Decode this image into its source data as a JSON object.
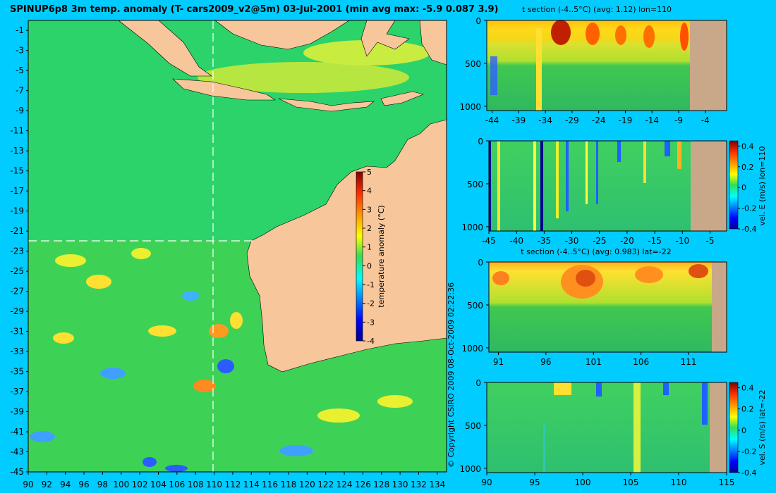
{
  "main_title": "SPINUP6p8 3m temp. anomaly (T- cars2009_v2@5m) 03-Jul-2001 (min avg max: -5.9 0.087 3.9)",
  "copyright": "© Copyright CSIRO 2009   08-Oct-2009 02:22:36",
  "colors": {
    "background": "#00ccff",
    "ocean": "#2bd36a",
    "land": "#f7c69a",
    "section_land": "#c8a888"
  },
  "chart_data": [
    {
      "type": "heatmap",
      "title": "",
      "xlabel": "",
      "ylabel": "",
      "x_ticks": [
        "90",
        "92",
        "94",
        "96",
        "98",
        "100",
        "102",
        "104",
        "106",
        "108",
        "110",
        "112",
        "114",
        "116",
        "118",
        "120",
        "122",
        "124",
        "126",
        "128",
        "130",
        "132",
        "134"
      ],
      "y_ticks": [
        "-1",
        "-3",
        "-5",
        "-7",
        "-9",
        "-11",
        "-13",
        "-15",
        "-17",
        "-19",
        "-21",
        "-23",
        "-25",
        "-27",
        "-29",
        "-31",
        "-33",
        "-35",
        "-37",
        "-39",
        "-41",
        "-43",
        "-45"
      ],
      "xlim": [
        90,
        135
      ],
      "ylim": [
        -45,
        0
      ],
      "crosshair": {
        "lon": 110,
        "lat": -22
      },
      "colorbar": {
        "label": "temperature anomaly (°C)",
        "ticks": [
          "5",
          "4",
          "3",
          "2",
          "1",
          "0",
          "-1",
          "-2",
          "-3",
          "-4"
        ],
        "range": [
          -4,
          5
        ]
      }
    },
    {
      "type": "heatmap",
      "title": "t section (-4..5°C) (avg: 1.12) lon=110",
      "x_ticks": [
        "-44",
        "-39",
        "-34",
        "-29",
        "-24",
        "-19",
        "-14",
        "-9",
        "-4"
      ],
      "y_ticks": [
        "0",
        "500",
        "1000"
      ],
      "xlim": [
        -45,
        0
      ],
      "ylim": [
        1050,
        0
      ]
    },
    {
      "type": "heatmap",
      "title": "",
      "x_ticks": [
        "-45",
        "-40",
        "-35",
        "-30",
        "-25",
        "-20",
        "-15",
        "-10",
        "-5"
      ],
      "y_ticks": [
        "0",
        "500",
        "1000"
      ],
      "xlim": [
        -45,
        -2
      ],
      "ylim": [
        1050,
        0
      ],
      "colorbar": {
        "label": "vel. E (m/s) lon=110",
        "ticks": [
          "0.4",
          "0.2",
          "0",
          "-0.2",
          "-0.4"
        ],
        "range": [
          -0.4,
          0.45
        ]
      }
    },
    {
      "type": "heatmap",
      "title": "t section (-4..5°C) (avg: 0.983) lat=-22",
      "x_ticks": [
        "91",
        "96",
        "101",
        "106",
        "111"
      ],
      "y_ticks": [
        "0",
        "500",
        "1000"
      ],
      "xlim": [
        90,
        115
      ],
      "ylim": [
        1050,
        0
      ]
    },
    {
      "type": "heatmap",
      "title": "",
      "x_ticks": [
        "90",
        "95",
        "100",
        "105",
        "110",
        "115"
      ],
      "y_ticks": [
        "0",
        "500",
        "1000"
      ],
      "xlim": [
        90,
        115
      ],
      "ylim": [
        1050,
        0
      ],
      "colorbar": {
        "label": "vel. S (m/s) lat=-22",
        "ticks": [
          "0.4",
          "0.2",
          "0",
          "-0.2",
          "-0.4"
        ],
        "range": [
          -0.4,
          0.45
        ]
      }
    }
  ]
}
